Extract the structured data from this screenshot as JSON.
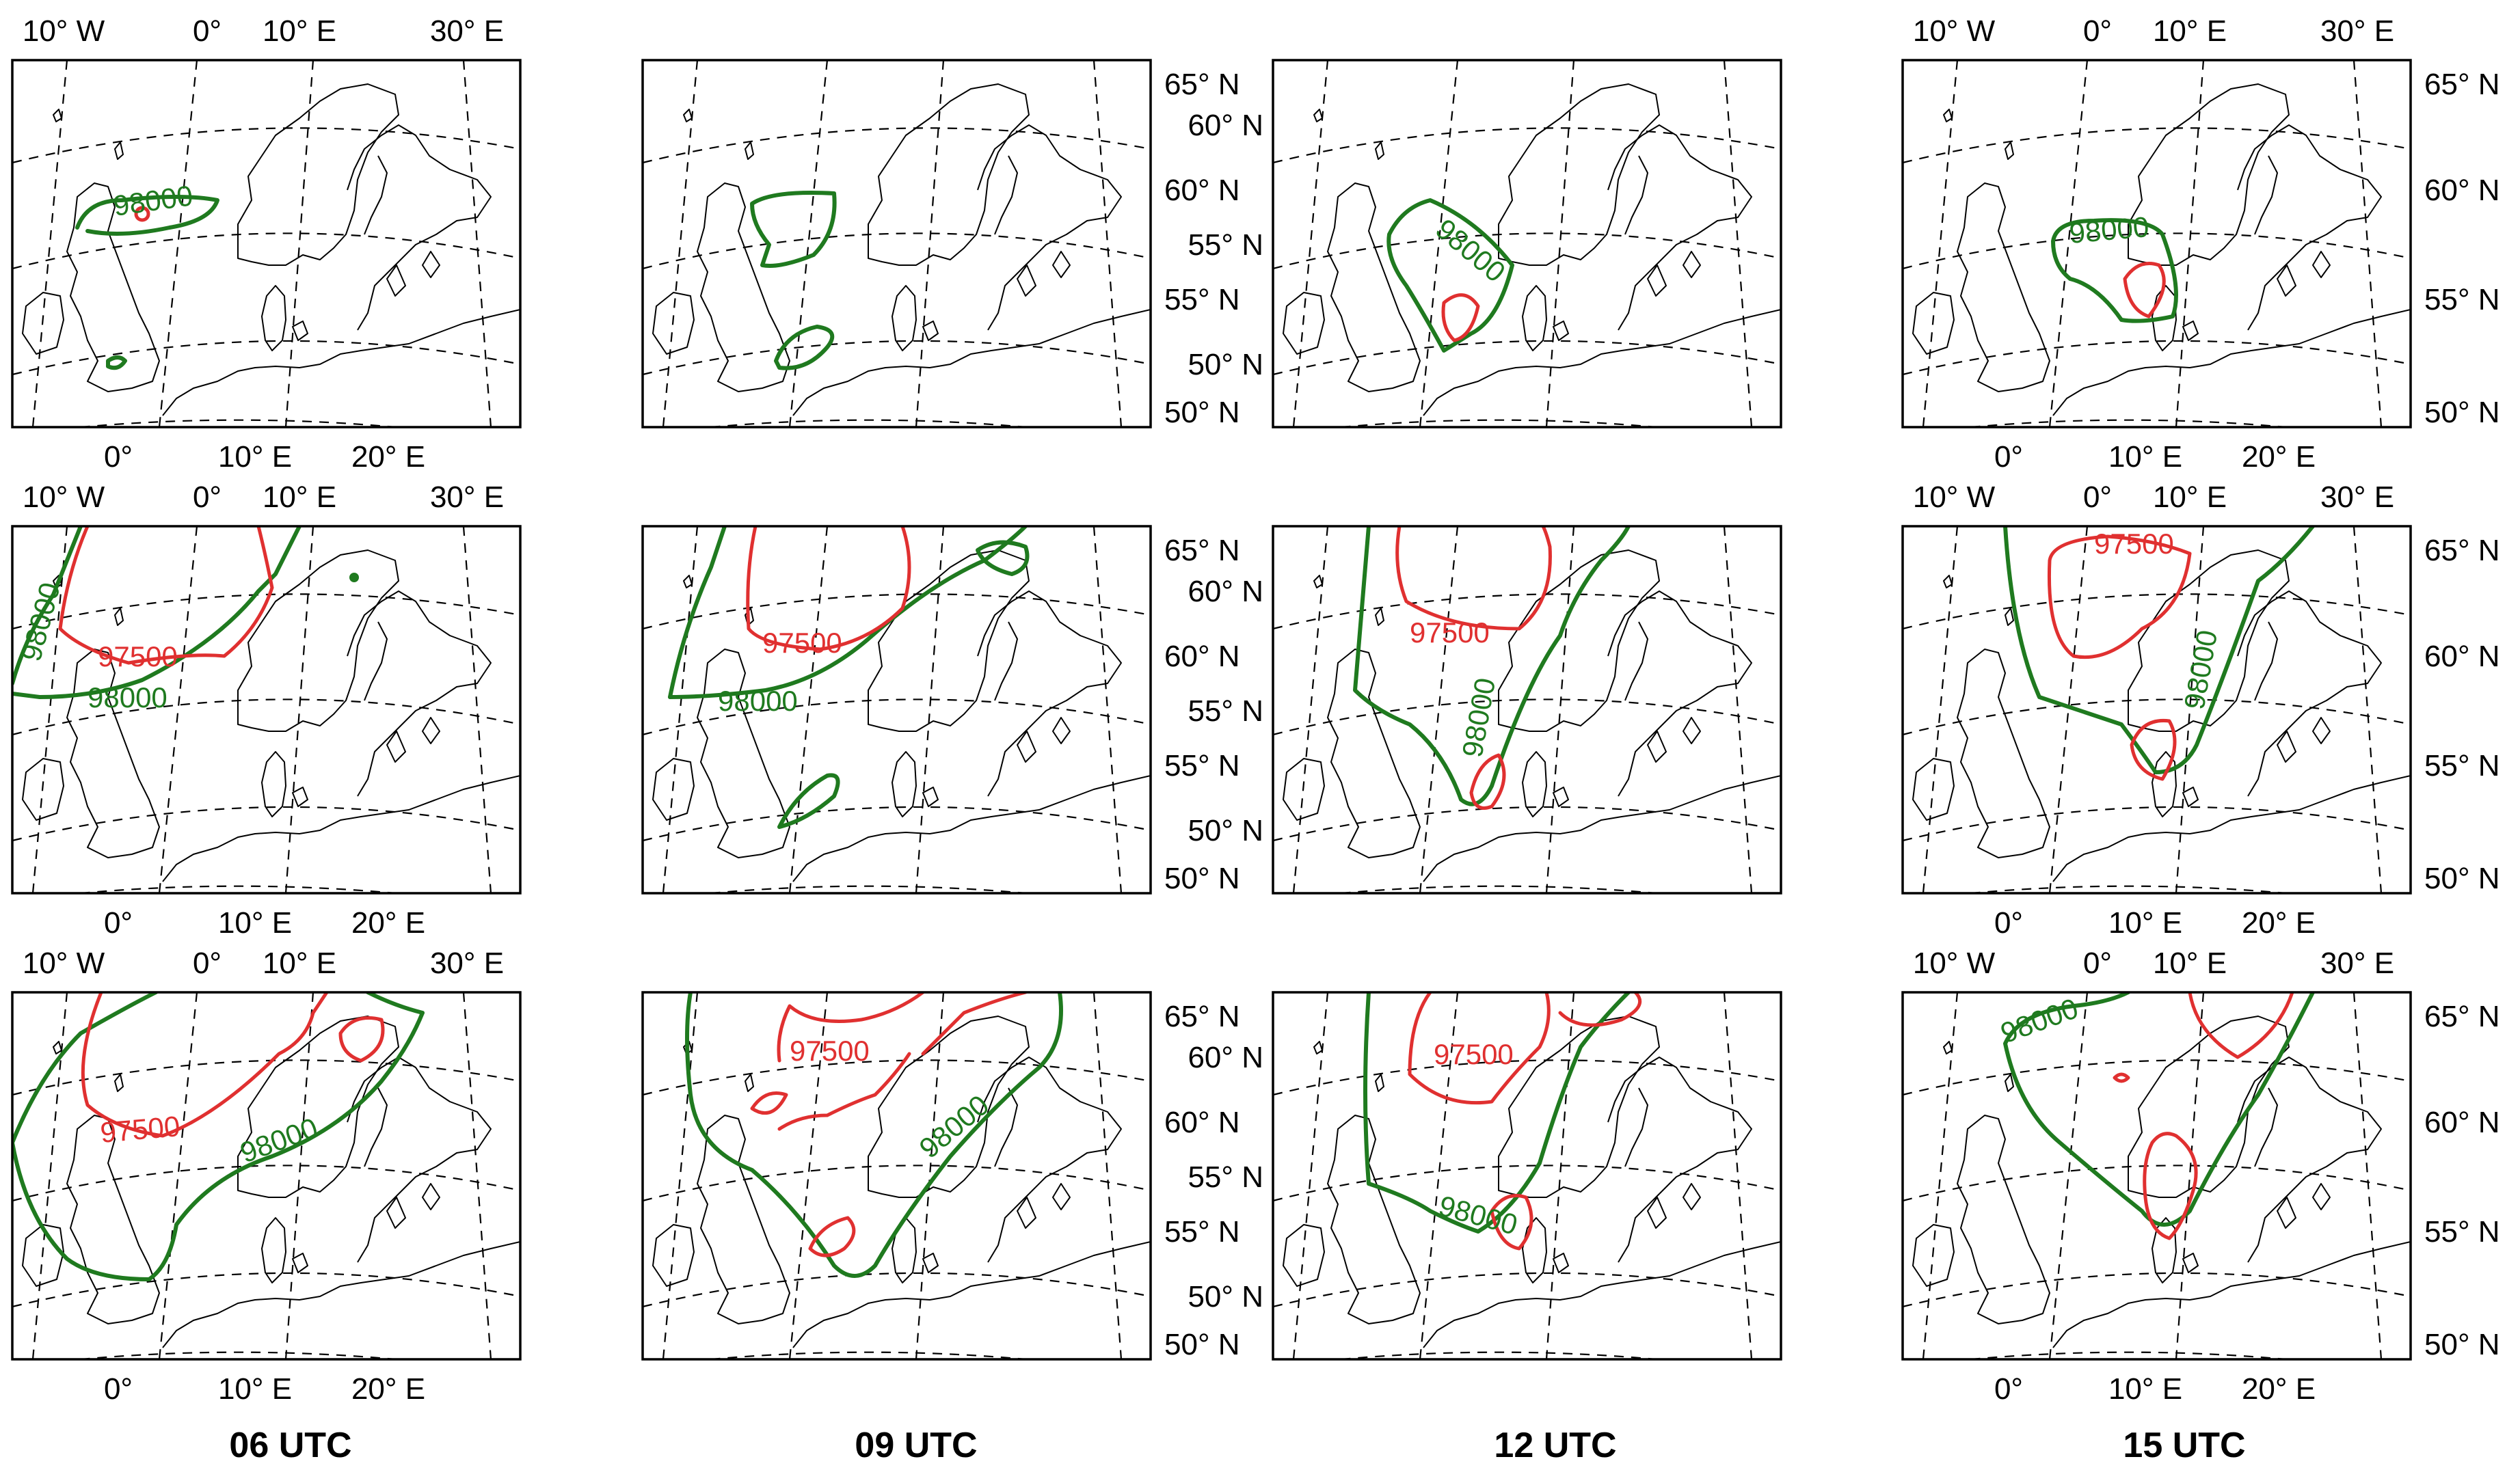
{
  "colors": {
    "contour_green": "#1f7a1f",
    "contour_red": "#e03030",
    "frame": "#000000"
  },
  "column_titles": [
    "06 UTC",
    "09 UTC",
    "12 UTC",
    "15 UTC"
  ],
  "lon_labels_top": [
    "10° W",
    "0°",
    "10° E",
    "30° E"
  ],
  "lon_labels_bottom": [
    "0°",
    "10° E",
    "20° E"
  ],
  "lat_labels_a": [
    "65° N",
    "60° N",
    "55° N",
    "50° N"
  ],
  "lat_labels_b": [
    "60° N",
    "55° N",
    "50° N"
  ],
  "contour_levels": {
    "green": "98000",
    "red": "97500"
  },
  "rows": [
    {
      "top_labels": [
        true,
        false,
        false,
        true
      ],
      "bottom_labels": [
        true,
        false,
        false,
        true
      ]
    },
    {
      "top_labels": [
        true,
        false,
        false,
        true
      ],
      "bottom_labels": [
        true,
        false,
        false,
        true
      ]
    },
    {
      "top_labels": [
        true,
        false,
        false,
        true
      ],
      "bottom_labels": [
        true,
        false,
        false,
        true
      ]
    }
  ]
}
